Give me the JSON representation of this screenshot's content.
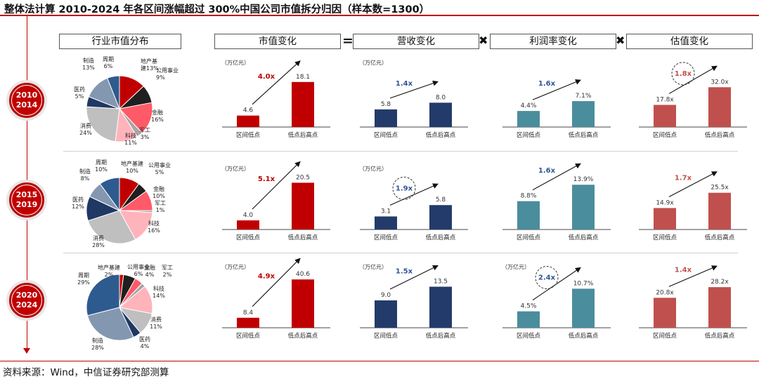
{
  "title": "整体法计算 2010-2024 年各区间涨幅超过 300%中国公司市值拆分归因（样本数=1300）",
  "source": "资料来源：Wind，中信证券研究部测算",
  "headers": {
    "industry": "行业市值分布",
    "market_cap": "市值变化",
    "equals": "=",
    "revenue": "营收变化",
    "times1": "✖",
    "margin": "利润率变化",
    "times2": "✖",
    "valuation": "估值变化"
  },
  "colors": {
    "accent": "#c00000",
    "market_cap": "#c00000",
    "revenue": "#233b6b",
    "margin": "#4a8d9c",
    "valuation": "#c0504d"
  },
  "periods": [
    {
      "line1": "2010",
      "line2": "2014",
      "pie_labels": [
        {
          "name": "地产基",
          "pct": "建13%"
        },
        {
          "name": "公用事业",
          "pct": "9%"
        },
        {
          "name": "金融",
          "pct": "16%"
        },
        {
          "name": "军工",
          "pct": "3%"
        },
        {
          "name": "科技",
          "pct": "11%"
        },
        {
          "name": "消费",
          "pct": "24%"
        },
        {
          "name": "医药",
          "pct": "5%"
        },
        {
          "name": "制造",
          "pct": "13%"
        },
        {
          "name": "周期",
          "pct": "6%"
        }
      ]
    },
    {
      "line1": "2015",
      "line2": "2019",
      "pie_labels": [
        {
          "name": "地产基建",
          "pct": "10%"
        },
        {
          "name": "公用事业",
          "pct": "5%"
        },
        {
          "name": "金融",
          "pct": "10%"
        },
        {
          "name": "军工",
          "pct": "1%"
        },
        {
          "name": "科技",
          "pct": "16%"
        },
        {
          "name": "消费",
          "pct": "28%"
        },
        {
          "name": "医药",
          "pct": "12%"
        },
        {
          "name": "制造",
          "pct": "8%"
        },
        {
          "name": "周期",
          "pct": "10%"
        }
      ]
    },
    {
      "line1": "2020",
      "line2": "2024",
      "pie_labels": [
        {
          "name": "地产基建",
          "pct": "2%"
        },
        {
          "name": "公用事业",
          "pct": "6%"
        },
        {
          "name": "金融",
          "pct": "4%"
        },
        {
          "name": "军工",
          "pct": "2%"
        },
        {
          "name": "科技",
          "pct": "14%"
        },
        {
          "name": "消费",
          "pct": "11%"
        },
        {
          "name": "医药",
          "pct": "4%"
        },
        {
          "name": "制造",
          "pct": "28%"
        },
        {
          "name": "周期",
          "pct": "29%"
        }
      ]
    }
  ],
  "chart_data": [
    {
      "type": "pie",
      "title": "行业市值分布 2010-2014",
      "labels": [
        "地产基建",
        "公用事业",
        "金融",
        "军工",
        "科技",
        "消费",
        "医药",
        "制造",
        "周期"
      ],
      "values": [
        13,
        9,
        16,
        3,
        11,
        24,
        5,
        13,
        6
      ],
      "colors": [
        "#c00000",
        "#1f1f1f",
        "#ff5a68",
        "#a6a6a6",
        "#ffb3bb",
        "#bfbfbf",
        "#1f3864",
        "#8497b0",
        "#2e5b8f"
      ]
    },
    {
      "type": "pie",
      "title": "行业市值分布 2015-2019",
      "labels": [
        "地产基建",
        "公用事业",
        "金融",
        "军工",
        "科技",
        "消费",
        "医药",
        "制造",
        "周期"
      ],
      "values": [
        10,
        5,
        10,
        1,
        16,
        28,
        12,
        8,
        10
      ],
      "colors": [
        "#c00000",
        "#1f1f1f",
        "#ff5a68",
        "#a6a6a6",
        "#ffb3bb",
        "#bfbfbf",
        "#1f3864",
        "#8497b0",
        "#2e5b8f"
      ]
    },
    {
      "type": "pie",
      "title": "行业市值分布 2020-2024",
      "labels": [
        "地产基建",
        "公用事业",
        "金融",
        "军工",
        "科技",
        "消费",
        "医药",
        "制造",
        "周期"
      ],
      "values": [
        2,
        6,
        4,
        2,
        14,
        11,
        4,
        28,
        29
      ],
      "colors": [
        "#c00000",
        "#1f1f1f",
        "#ff5a68",
        "#a6a6a6",
        "#ffb3bb",
        "#bfbfbf",
        "#1f3864",
        "#8497b0",
        "#2e5b8f"
      ]
    },
    {
      "type": "bar",
      "title": "市值变化 2010-2014",
      "unit": "（万亿元）",
      "categories": [
        "区间低点",
        "低点后高点"
      ],
      "values": [
        4.6,
        18.1
      ],
      "value_labels": [
        "4.6",
        "18.1"
      ],
      "multiplier": "4.0x",
      "ratio_color": "#c00000",
      "circled": false,
      "color": "#c00000",
      "ymax": 22
    },
    {
      "type": "bar",
      "title": "营收变化 2010-2014",
      "unit": "（万亿元）",
      "categories": [
        "区间低点",
        "低点后高点"
      ],
      "values": [
        5.8,
        8.0
      ],
      "value_labels": [
        "5.8",
        "8.0"
      ],
      "multiplier": "1.4x",
      "ratio_color": "#2f5597",
      "circled": false,
      "color": "#233b6b",
      "ymax": 18
    },
    {
      "type": "bar",
      "title": "利润率变化 2010-2014",
      "unit": "",
      "categories": [
        "区间低点",
        "低点后高点"
      ],
      "values": [
        4.4,
        7.1
      ],
      "value_labels": [
        "4.4%",
        "7.1%"
      ],
      "multiplier": "1.6x",
      "ratio_color": "#2f5597",
      "circled": false,
      "color": "#4a8d9c",
      "ymax": 15
    },
    {
      "type": "bar",
      "title": "估值变化 2010-2014",
      "unit": "",
      "categories": [
        "区间低点",
        "低点后高点"
      ],
      "values": [
        17.8,
        32.0
      ],
      "value_labels": [
        "17.8x",
        "32.0x"
      ],
      "multiplier": "1.8x",
      "ratio_color": "#c0504d",
      "circled": true,
      "color": "#c0504d",
      "ymax": 44
    },
    {
      "type": "bar",
      "title": "市值变化 2015-2019",
      "unit": "（万亿元）",
      "categories": [
        "区间低点",
        "低点后高点"
      ],
      "values": [
        4.0,
        20.5
      ],
      "value_labels": [
        "4.0",
        "20.5"
      ],
      "multiplier": "5.1x",
      "ratio_color": "#c00000",
      "circled": false,
      "color": "#c00000",
      "ymax": 24
    },
    {
      "type": "bar",
      "title": "营收变化 2015-2019",
      "unit": "（万亿元）",
      "categories": [
        "区间低点",
        "低点后高点"
      ],
      "values": [
        3.1,
        5.8
      ],
      "value_labels": [
        "3.1",
        "5.8"
      ],
      "multiplier": "1.9x",
      "ratio_color": "#2f5597",
      "circled": true,
      "color": "#233b6b",
      "ymax": 13
    },
    {
      "type": "bar",
      "title": "利润率变化 2015-2019",
      "unit": "",
      "categories": [
        "区间低点",
        "低点后高点"
      ],
      "values": [
        8.8,
        13.9
      ],
      "value_labels": [
        "8.8%",
        "13.9%"
      ],
      "multiplier": "1.6x",
      "ratio_color": "#2f5597",
      "circled": false,
      "color": "#4a8d9c",
      "ymax": 17
    },
    {
      "type": "bar",
      "title": "估值变化 2015-2019",
      "unit": "",
      "categories": [
        "区间低点",
        "低点后高点"
      ],
      "values": [
        14.9,
        25.5
      ],
      "value_labels": [
        "14.9x",
        "25.5x"
      ],
      "multiplier": "1.7x",
      "ratio_color": "#c0504d",
      "circled": false,
      "color": "#c0504d",
      "ymax": 38
    },
    {
      "type": "bar",
      "title": "市值变化 2020-2024",
      "unit": "（万亿元）",
      "categories": [
        "区间低点",
        "低点后高点"
      ],
      "values": [
        8.4,
        40.6
      ],
      "value_labels": [
        "8.4",
        "40.6"
      ],
      "multiplier": "4.9x",
      "ratio_color": "#c00000",
      "circled": false,
      "color": "#c00000",
      "ymax": 46
    },
    {
      "type": "bar",
      "title": "营收变化 2020-2024",
      "unit": "（万亿元）",
      "categories": [
        "区间低点",
        "低点后高点"
      ],
      "values": [
        9.0,
        13.5
      ],
      "value_labels": [
        "9.0",
        "13.5"
      ],
      "multiplier": "1.5x",
      "ratio_color": "#2f5597",
      "circled": false,
      "color": "#233b6b",
      "ymax": 18
    },
    {
      "type": "bar",
      "title": "利润率变化 2020-2024",
      "unit": "（万亿元）",
      "categories": [
        "区间低点",
        "低点后高点"
      ],
      "values": [
        4.5,
        10.7
      ],
      "value_labels": [
        "4.5%",
        "10.7%"
      ],
      "multiplier": "2.4x",
      "ratio_color": "#2f5597",
      "circled": true,
      "color": "#4a8d9c",
      "ymax": 15
    },
    {
      "type": "bar",
      "title": "估值变化 2020-2024",
      "unit": "",
      "categories": [
        "区间低点",
        "低点后高点"
      ],
      "values": [
        20.8,
        28.2
      ],
      "value_labels": [
        "20.8x",
        "28.2x"
      ],
      "multiplier": "1.4x",
      "ratio_color": "#c0504d",
      "circled": false,
      "color": "#c0504d",
      "ymax": 38
    }
  ]
}
